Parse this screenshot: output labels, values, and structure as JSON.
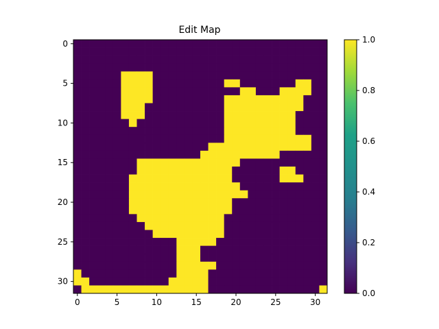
{
  "chart_data": {
    "type": "heatmap",
    "title": "Edit Map",
    "xlabel": "",
    "ylabel": "",
    "shape": [
      32,
      32
    ],
    "x_ticks": [
      0,
      5,
      10,
      15,
      20,
      25,
      30
    ],
    "y_ticks": [
      0,
      5,
      10,
      15,
      20,
      25,
      30
    ],
    "colormap": "viridis",
    "low_color": "#440154",
    "high_color": "#fde725",
    "colorbar": {
      "range": [
        0.0,
        1.0
      ],
      "ticks": [
        0.0,
        0.2,
        0.4,
        0.6,
        0.8,
        1.0
      ],
      "tick_labels": [
        "0.0",
        "0.2",
        "0.4",
        "0.6",
        "0.8",
        "1.0"
      ]
    },
    "grid": false,
    "value_rows": [
      "00000000000000000000000000000000",
      "00000000000000000000000000000000",
      "00000000000000000000000000000000",
      "00000000000000000000000000000000",
      "00000011110000000000000000000000",
      "00000011110000000001100000001100",
      "00000011110000000000011000111100",
      "00000011110000000001111111111000",
      "00000011100000000001111111111000",
      "00000011100000000001111111110000",
      "00000001000000000001111111110000",
      "00000000000000000001111111110000",
      "00000000000000000001111111111100",
      "00000000000000000111111111111100",
      "00000000000000001111111111000000",
      "00000000111111111111100000000000",
      "00000000111111111111000000110000",
      "00000001111111111111000000111000",
      "00000001111111111111100000000000",
      "00000001111111111111110000000000",
      "00000001111111111111000000000000",
      "00000001111111111111000000000000",
      "00000000111111111110000000000000",
      "00000000011111111110000000000000",
      "00000000001111111110000000000000",
      "00000000000001111100000000000000",
      "00000000000001110000000000000000",
      "00000000000001110000000000000000",
      "00000000000001111100000000000000",
      "10000000000001111000000000000000",
      "11000000000011111000000000000000",
      "01111111111111111000000000000001"
    ]
  }
}
